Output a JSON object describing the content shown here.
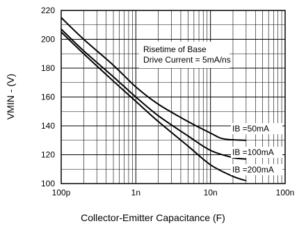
{
  "chart_data": {
    "type": "line",
    "x_scale": "log",
    "xlim": [
      "100p",
      "100n"
    ],
    "xlim_farads": [
      1e-10,
      1e-07
    ],
    "ylim": [
      100,
      220
    ],
    "grid": true,
    "xlabel": "Collector-Emitter Capacitance (F)",
    "ylabel": "VMIN - (V)",
    "x_tick_labels": [
      "100p",
      "1n",
      "10n",
      "100n"
    ],
    "y_tick_labels": [
      "100",
      "120",
      "140",
      "160",
      "180",
      "200",
      "220"
    ],
    "annotation": [
      "Risetime of Base",
      "Drive Current = 5mA/ns"
    ],
    "series": [
      {
        "name": "IB =50mA",
        "x": [
          1e-10,
          2e-10,
          5e-10,
          1e-09,
          2e-09,
          5e-09,
          1e-08,
          1.5e-08,
          3e-08
        ],
        "y": [
          215,
          200,
          182,
          167,
          155,
          143,
          135,
          131,
          130
        ]
      },
      {
        "name": "IB =100mA",
        "x": [
          1e-10,
          2e-10,
          5e-10,
          1e-09,
          2e-09,
          5e-09,
          1e-08,
          2e-08,
          3e-08
        ],
        "y": [
          207,
          192,
          174,
          160,
          147,
          133,
          123,
          118,
          117
        ]
      },
      {
        "name": "IB =200mA",
        "x": [
          1e-10,
          2e-10,
          5e-10,
          1e-09,
          2e-09,
          5e-09,
          1e-08,
          2e-08,
          3e-08
        ],
        "y": [
          205,
          190,
          171,
          157,
          143,
          126,
          113,
          105,
          102
        ]
      }
    ]
  }
}
